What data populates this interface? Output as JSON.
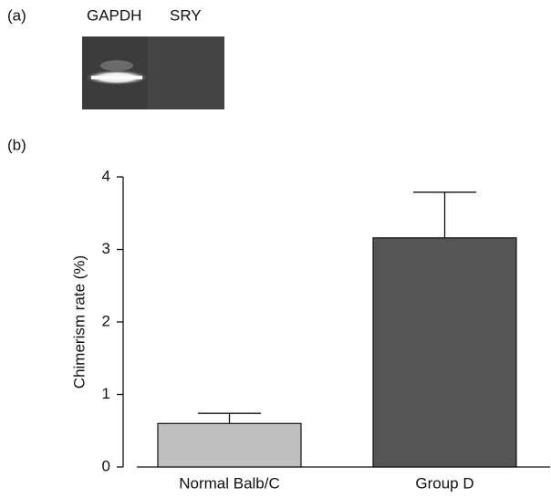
{
  "panel_a": {
    "label": "(a)",
    "lanes": [
      "GAPDH",
      "SRY"
    ]
  },
  "chart_data": {
    "type": "bar",
    "panel_label": "(b)",
    "y_label": "Chimerism rate (%)",
    "categories": [
      "Normal Balb/C",
      "Group D"
    ],
    "values": [
      0.6,
      3.16
    ],
    "errors": [
      0.14,
      0.63
    ],
    "colors": [
      "#c0c0c0",
      "#555555"
    ],
    "ylim": [
      0,
      4
    ],
    "yticks": [
      0,
      1,
      2,
      3,
      4
    ]
  }
}
